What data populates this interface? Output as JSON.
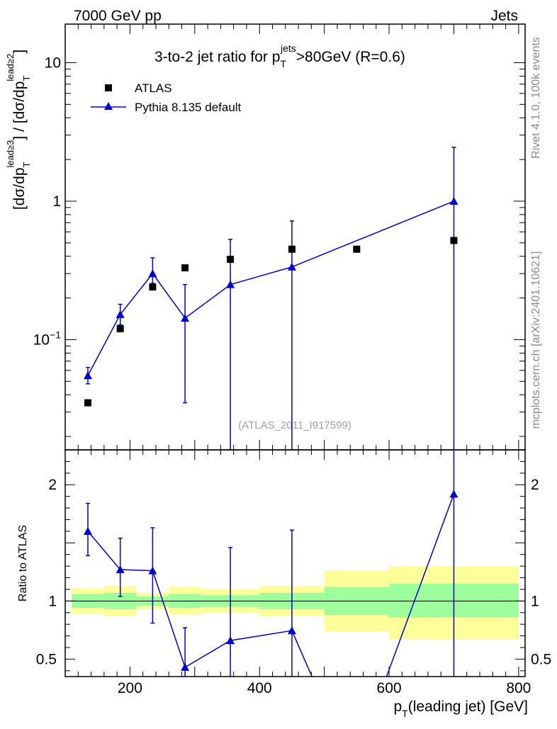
{
  "header": {
    "left": "7000 GeV pp",
    "right": "Jets"
  },
  "side_labels": {
    "rivet": "Rivet 4.1.0,  100k events",
    "mcplots": "mcplots.cern.ch [arXiv:2401.10621]"
  },
  "watermark": "(ATLAS_2011_I917599)",
  "colors": {
    "data": "#000000",
    "mc": "#0000cc",
    "band_inner": "#9cff9c",
    "band_outer": "#ffff99"
  },
  "chart_data": [
    {
      "type": "scatter",
      "panel": "main",
      "title": "3-to-2 jet ratio for p_T^jets>80GeV (R=0.6)",
      "title_parts": {
        "pre": "3-to-2 jet ratio for p",
        "sub": "T",
        "sup": "jets",
        "post": ">80GeV (R=0.6)"
      },
      "ylabel": "[dσ/dp_T^lead≥3] / [dσ/dp_T^lead≥2]",
      "yscale": "log",
      "ylim": [
        0.016,
        19
      ],
      "xlim": [
        100,
        810
      ],
      "y_tick_labels": [
        "10",
        "1",
        "10−1"
      ],
      "y_tick_values": [
        10,
        1,
        0.1
      ],
      "legend": [
        "ATLAS",
        "Pythia 8.135 default"
      ],
      "legend_position": "top-left",
      "series": [
        {
          "name": "ATLAS",
          "marker": "square",
          "x": [
            135,
            185,
            235,
            285,
            355,
            450,
            550,
            700
          ],
          "y": [
            0.035,
            0.12,
            0.24,
            0.33,
            0.38,
            0.45,
            0.45,
            0.52
          ]
        },
        {
          "name": "Pythia 8.135 default",
          "marker": "triangle",
          "x": [
            135,
            185,
            235,
            285,
            355,
            450,
            700
          ],
          "y": [
            0.055,
            0.152,
            0.3,
            0.143,
            0.25,
            0.335,
            1.0
          ],
          "yerr_low": [
            0.048,
            0.128,
            0.255,
            0.035,
            0.0001,
            0.0001,
            0.0001
          ],
          "yerr_high": [
            0.063,
            0.18,
            0.39,
            0.25,
            0.53,
            0.72,
            2.45
          ]
        }
      ]
    },
    {
      "type": "line",
      "panel": "ratio",
      "ylabel": "Ratio to ATLAS",
      "xlabel": "p_T(leading jet) [GeV]",
      "xlabel_parts": {
        "pre": "p",
        "sub": "T",
        "post": "(leading jet) [GeV]"
      },
      "ylim": [
        0.35,
        2.3
      ],
      "xlim": [
        100,
        810
      ],
      "x_tick_values": [
        200,
        400,
        600,
        800
      ],
      "x_tick_labels": [
        "200",
        "400",
        "600",
        "800"
      ],
      "y_tick_values": [
        2,
        1,
        0.5
      ],
      "y_tick_labels": [
        "2",
        "1",
        "0.5"
      ],
      "bands": [
        {
          "x": [
            110,
            160
          ],
          "inner": [
            0.94,
            1.06
          ],
          "outer": [
            0.89,
            1.11
          ]
        },
        {
          "x": [
            160,
            210
          ],
          "inner": [
            0.93,
            1.07
          ],
          "outer": [
            0.87,
            1.13
          ]
        },
        {
          "x": [
            210,
            260
          ],
          "inner": [
            0.96,
            1.04
          ],
          "outer": [
            0.93,
            1.07
          ]
        },
        {
          "x": [
            260,
            310
          ],
          "inner": [
            0.94,
            1.06
          ],
          "outer": [
            0.88,
            1.12
          ]
        },
        {
          "x": [
            310,
            400
          ],
          "inner": [
            0.95,
            1.05
          ],
          "outer": [
            0.9,
            1.1
          ]
        },
        {
          "x": [
            400,
            500
          ],
          "inner": [
            0.93,
            1.07
          ],
          "outer": [
            0.87,
            1.13
          ]
        },
        {
          "x": [
            500,
            600
          ],
          "inner": [
            0.88,
            1.12
          ],
          "outer": [
            0.74,
            1.26
          ]
        },
        {
          "x": [
            600,
            800
          ],
          "inner": [
            0.86,
            1.15
          ],
          "outer": [
            0.67,
            1.3
          ]
        }
      ],
      "reference_line": 1,
      "series": [
        {
          "name": "Pythia 8.135 default",
          "x": [
            135,
            185,
            235,
            285,
            355,
            450,
            700
          ],
          "y": [
            1.6,
            1.27,
            1.26,
            0.43,
            0.66,
            0.745,
            1.92
          ],
          "yerr_low": [
            1.39,
            1.04,
            0.81,
            0.3,
            0.01,
            0.01,
            0.01
          ],
          "yerr_high": [
            1.84,
            1.54,
            1.63,
            0.77,
            1.46,
            1.61,
            3.0
          ],
          "off_scale_segment": {
            "from": [
              450,
              0.745
            ],
            "through_x": [
              500,
              580
            ],
            "to": [
              700,
              1.92
            ]
          }
        }
      ]
    }
  ]
}
